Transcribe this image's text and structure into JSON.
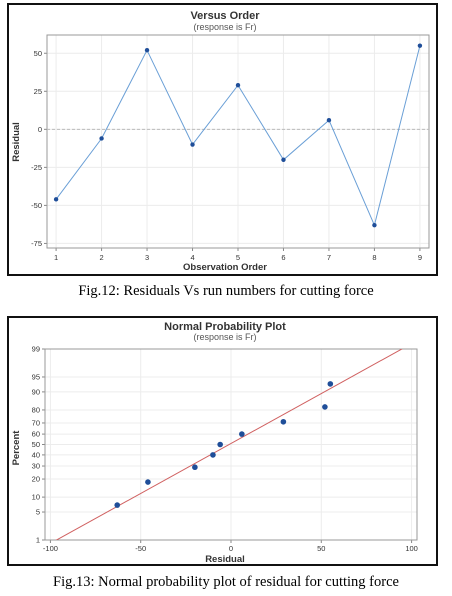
{
  "chart_data": [
    {
      "type": "line",
      "title": "Versus Order",
      "subtitle": "(response is Fr)",
      "xlabel": "Observation Order",
      "ylabel": "Residual",
      "x": [
        1,
        2,
        3,
        4,
        5,
        6,
        7,
        8,
        9
      ],
      "y": [
        -46,
        -6,
        52,
        -10,
        29,
        -20,
        6,
        -63,
        55
      ],
      "xticks": [
        "1",
        "2",
        "3",
        "4",
        "5",
        "6",
        "7",
        "8",
        "9"
      ],
      "yticks": [
        "-75",
        "-50",
        "-25",
        "0",
        "25",
        "50"
      ],
      "xlim": [
        0.8,
        9.2
      ],
      "ylim": [
        -78,
        62
      ],
      "reference_line_y": 0,
      "grid": true,
      "colors": {
        "line": "#6a9fd6",
        "points": "#1f4e99",
        "reference": "#bbbbbb"
      }
    },
    {
      "type": "scatter",
      "title": "Normal Probability Plot",
      "subtitle": "(response is Fr)",
      "xlabel": "Residual",
      "ylabel": "Percent",
      "x": [
        -63,
        -46,
        -20,
        -10,
        -6,
        6,
        29,
        52,
        55
      ],
      "y": [
        7,
        18,
        29,
        40,
        50,
        60,
        71,
        82,
        93
      ],
      "fit_line": {
        "x": [
          -100,
          100
        ],
        "y": [
          0.8,
          99.3
        ]
      },
      "xticks": [
        "-100",
        "-50",
        "0",
        "50",
        "100"
      ],
      "yticks": [
        "1",
        "5",
        "10",
        "20",
        "30",
        "40",
        "50",
        "60",
        "70",
        "80",
        "90",
        "95",
        "99"
      ],
      "xlim": [
        -103,
        103
      ],
      "ylim": [
        1,
        99
      ],
      "y_scale": "normal probability",
      "grid": true,
      "colors": {
        "points": "#1f4e99",
        "fit_line": "#d06060"
      }
    }
  ],
  "captions": {
    "fig12": "Fig.12: Residuals Vs run numbers for cutting force",
    "fig13": "Fig.13: Normal probability plot of residual for cutting force"
  }
}
